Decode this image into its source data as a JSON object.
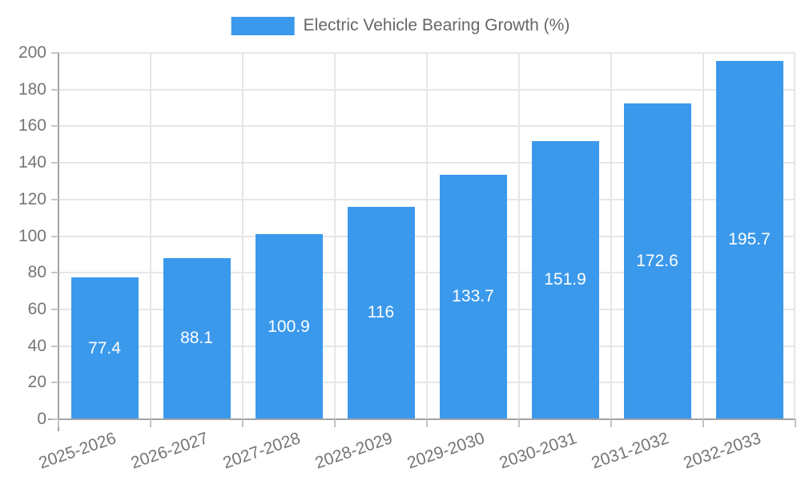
{
  "chart_data": {
    "type": "bar",
    "title": "Electric Vehicle Bearing Growth (%)",
    "categories": [
      "2025-2026",
      "2026-2027",
      "2027-2028",
      "2028-2029",
      "2029-2030",
      "2030-2031",
      "2031-2032",
      "2032-2033"
    ],
    "values": [
      77.4,
      88.1,
      100.9,
      116,
      133.7,
      151.9,
      172.6,
      195.7
    ],
    "data_labels": [
      "77.4",
      "88.1",
      "100.9",
      "116",
      "133.7",
      "151.9",
      "172.6",
      "195.7"
    ],
    "xlabel": "",
    "ylabel": "",
    "ylim": [
      0,
      200
    ],
    "yticks": [
      0,
      20,
      40,
      60,
      80,
      100,
      120,
      140,
      160,
      180,
      200
    ],
    "legend_position": "top",
    "grid": "both",
    "x_label_rotation_deg": -19,
    "colors": {
      "bar": "#3b99ec",
      "bar_value_text": "#ffffff",
      "axis_text": "#757575",
      "legend_text": "#666666",
      "gridline": "#e6e6e6",
      "axis_line": "#a3a3a3",
      "tick": "#c4c4c4"
    }
  }
}
